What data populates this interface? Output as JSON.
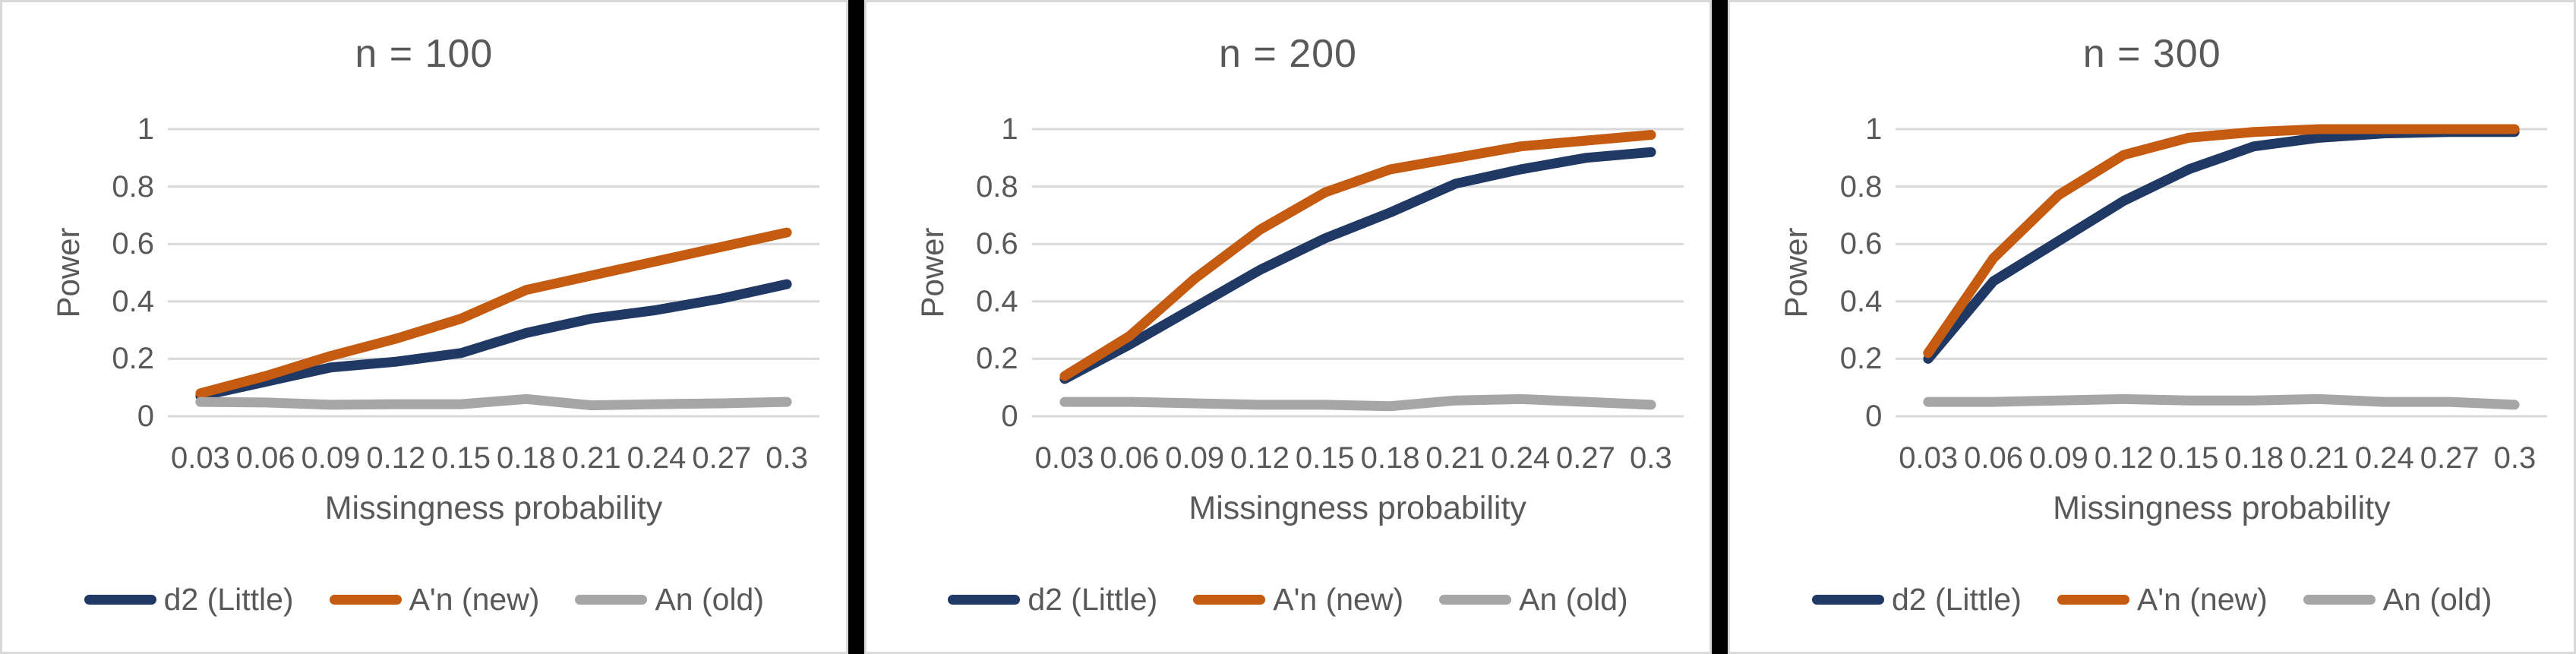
{
  "figure": {
    "divider_color": "#000000",
    "panel_border_color": "#d9d9d9",
    "background": "#ffffff",
    "text_color": "#595959",
    "gridline_color": "#d9d9d9"
  },
  "chart_data": [
    {
      "type": "line",
      "title": "n = 100",
      "xlabel": "Missingness probability",
      "ylabel": "Power",
      "categories": [
        "0.03",
        "0.06",
        "0.09",
        "0.12",
        "0.15",
        "0.18",
        "0.21",
        "0.24",
        "0.27",
        "0.3"
      ],
      "yticks": [
        0,
        0.2,
        0.4,
        0.6,
        0.8,
        1
      ],
      "ylim": [
        0,
        1
      ],
      "grid": true,
      "legend_position": "bottom",
      "series": [
        {
          "name": "d2 (Little)",
          "color": "#1F3864",
          "values": [
            0.07,
            0.12,
            0.17,
            0.19,
            0.22,
            0.29,
            0.34,
            0.37,
            0.41,
            0.46
          ]
        },
        {
          "name": "A'n (new)",
          "color": "#C55A11",
          "values": [
            0.08,
            0.14,
            0.21,
            0.27,
            0.34,
            0.44,
            0.49,
            0.54,
            0.59,
            0.64
          ]
        },
        {
          "name": "An (old)",
          "color": "#A6A6A6",
          "values": [
            0.05,
            0.048,
            0.04,
            0.042,
            0.042,
            0.06,
            0.038,
            0.042,
            0.045,
            0.05
          ]
        }
      ]
    },
    {
      "type": "line",
      "title": "n = 200",
      "xlabel": "Missingness probability",
      "ylabel": "Power",
      "categories": [
        "0.03",
        "0.06",
        "0.09",
        "0.12",
        "0.15",
        "0.18",
        "0.21",
        "0.24",
        "0.27",
        "0.3"
      ],
      "yticks": [
        0,
        0.2,
        0.4,
        0.6,
        0.8,
        1
      ],
      "ylim": [
        0,
        1
      ],
      "grid": true,
      "legend_position": "bottom",
      "series": [
        {
          "name": "d2 (Little)",
          "color": "#1F3864",
          "values": [
            0.13,
            0.25,
            0.38,
            0.51,
            0.62,
            0.71,
            0.81,
            0.86,
            0.9,
            0.92
          ]
        },
        {
          "name": "A'n (new)",
          "color": "#C55A11",
          "values": [
            0.14,
            0.28,
            0.48,
            0.65,
            0.78,
            0.86,
            0.9,
            0.94,
            0.96,
            0.98
          ]
        },
        {
          "name": "An (old)",
          "color": "#A6A6A6",
          "values": [
            0.05,
            0.05,
            0.045,
            0.04,
            0.04,
            0.035,
            0.055,
            0.06,
            0.05,
            0.04
          ]
        }
      ]
    },
    {
      "type": "line",
      "title": "n = 300",
      "xlabel": "Missingness probability",
      "ylabel": "Power",
      "categories": [
        "0.03",
        "0.06",
        "0.09",
        "0.12",
        "0.15",
        "0.18",
        "0.21",
        "0.24",
        "0.27",
        "0.3"
      ],
      "yticks": [
        0,
        0.2,
        0.4,
        0.6,
        0.8,
        1
      ],
      "ylim": [
        0,
        1
      ],
      "grid": true,
      "legend_position": "bottom",
      "series": [
        {
          "name": "d2 (Little)",
          "color": "#1F3864",
          "values": [
            0.2,
            0.47,
            0.61,
            0.75,
            0.86,
            0.94,
            0.97,
            0.985,
            0.99,
            0.99
          ]
        },
        {
          "name": "A'n (new)",
          "color": "#C55A11",
          "values": [
            0.22,
            0.55,
            0.77,
            0.91,
            0.97,
            0.99,
            1.0,
            1.0,
            1.0,
            1.0
          ]
        },
        {
          "name": "An (old)",
          "color": "#A6A6A6",
          "values": [
            0.05,
            0.05,
            0.055,
            0.06,
            0.055,
            0.055,
            0.06,
            0.05,
            0.05,
            0.04
          ]
        }
      ]
    }
  ]
}
